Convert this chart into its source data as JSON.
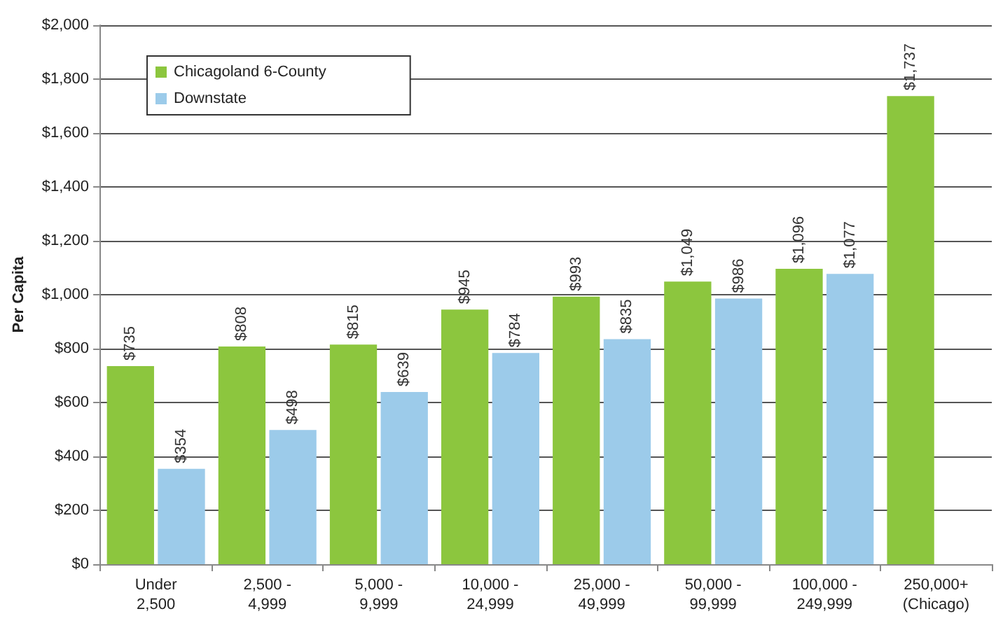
{
  "chart_data": {
    "type": "bar",
    "ylabel": "Per Capita",
    "categories": [
      "Under\n2,500",
      "2,500 -\n4,999",
      "5,000 -\n9,999",
      "10,000 -\n24,999",
      "25,000 -\n49,999",
      "50,000 -\n99,999",
      "100,000 -\n249,999",
      "250,000+\n(Chicago)"
    ],
    "series": [
      {
        "name": "Chicagoland 6-County",
        "color": "#8cc63e",
        "values": [
          735,
          808,
          815,
          945,
          993,
          1049,
          1096,
          1737
        ],
        "value_labels": [
          "$735",
          "$808",
          "$815",
          "$945",
          "$993",
          "$1,049",
          "$1,096",
          "$1,737"
        ]
      },
      {
        "name": "Downstate",
        "color": "#9ccbea",
        "values": [
          354,
          498,
          639,
          784,
          835,
          986,
          1077,
          null
        ],
        "value_labels": [
          "$354",
          "$498",
          "$639",
          "$784",
          "$835",
          "$986",
          "$1,077",
          null
        ]
      }
    ],
    "ylim": [
      0,
      2000
    ],
    "yticks": [
      {
        "value": 0,
        "label": "$0"
      },
      {
        "value": 200,
        "label": "$200"
      },
      {
        "value": 400,
        "label": "$400"
      },
      {
        "value": 600,
        "label": "$600"
      },
      {
        "value": 800,
        "label": "$800"
      },
      {
        "value": 1000,
        "label": "$1,000"
      },
      {
        "value": 1200,
        "label": "$1,200"
      },
      {
        "value": 1400,
        "label": "$1,400"
      },
      {
        "value": 1600,
        "label": "$1,600"
      },
      {
        "value": 1800,
        "label": "$1,800"
      },
      {
        "value": 2000,
        "label": "$2,000"
      }
    ],
    "grid": "y",
    "legend": "top left"
  }
}
